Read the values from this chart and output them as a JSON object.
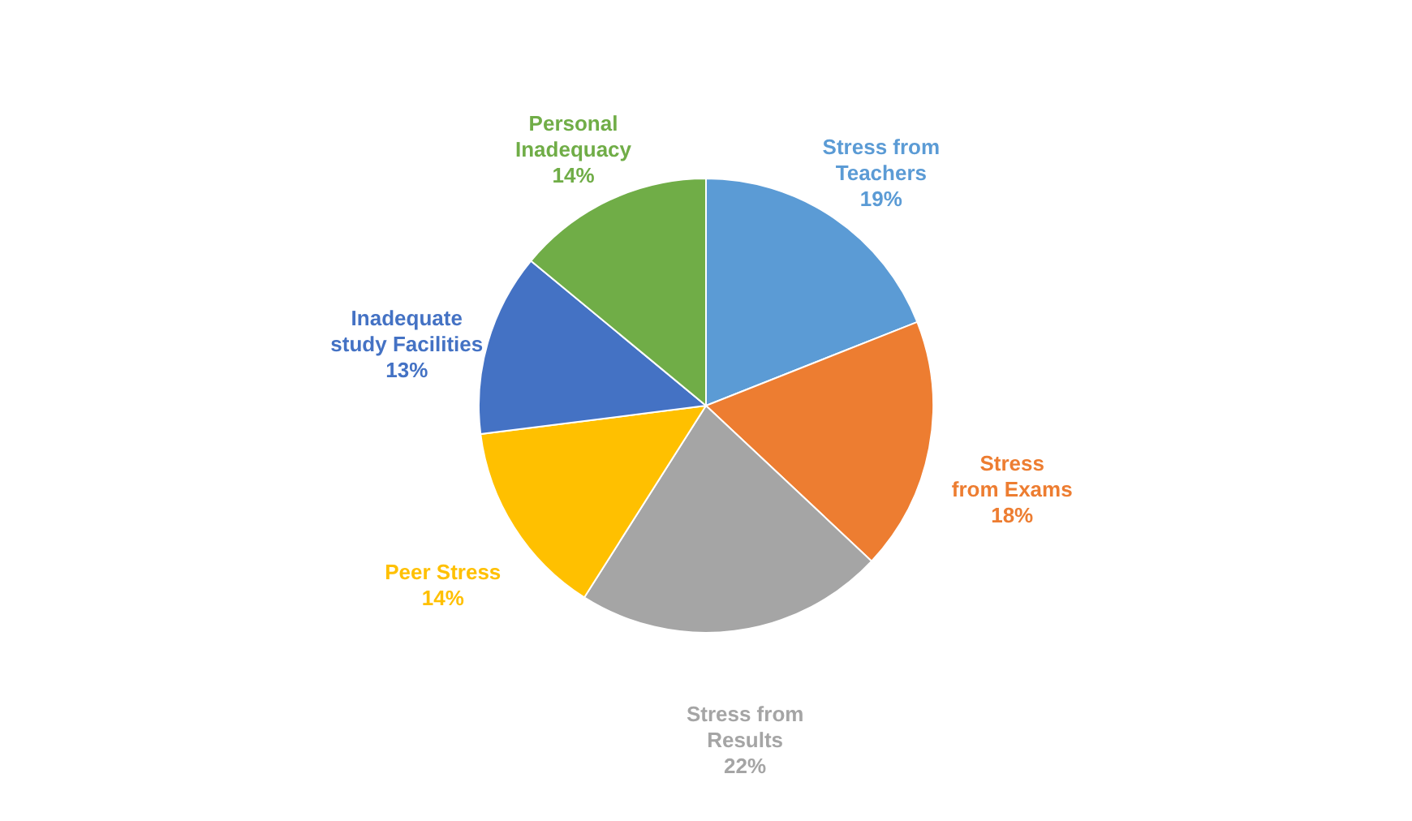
{
  "chart_data": {
    "type": "pie",
    "categories": [
      "Stress from Teachers",
      "Stress from Exams",
      "Stress from Results",
      "Peer Stress",
      "Inadequate study Facilities",
      "Personal Inadequacy"
    ],
    "values": [
      19,
      18,
      22,
      14,
      13,
      14
    ],
    "value_labels": [
      "19%",
      "18%",
      "22%",
      "14%",
      "13%",
      "14%"
    ],
    "colors": [
      "#5b9bd5",
      "#ed7d31",
      "#a5a5a5",
      "#ffc000",
      "#4472c4",
      "#70ad47"
    ],
    "legend": false
  }
}
